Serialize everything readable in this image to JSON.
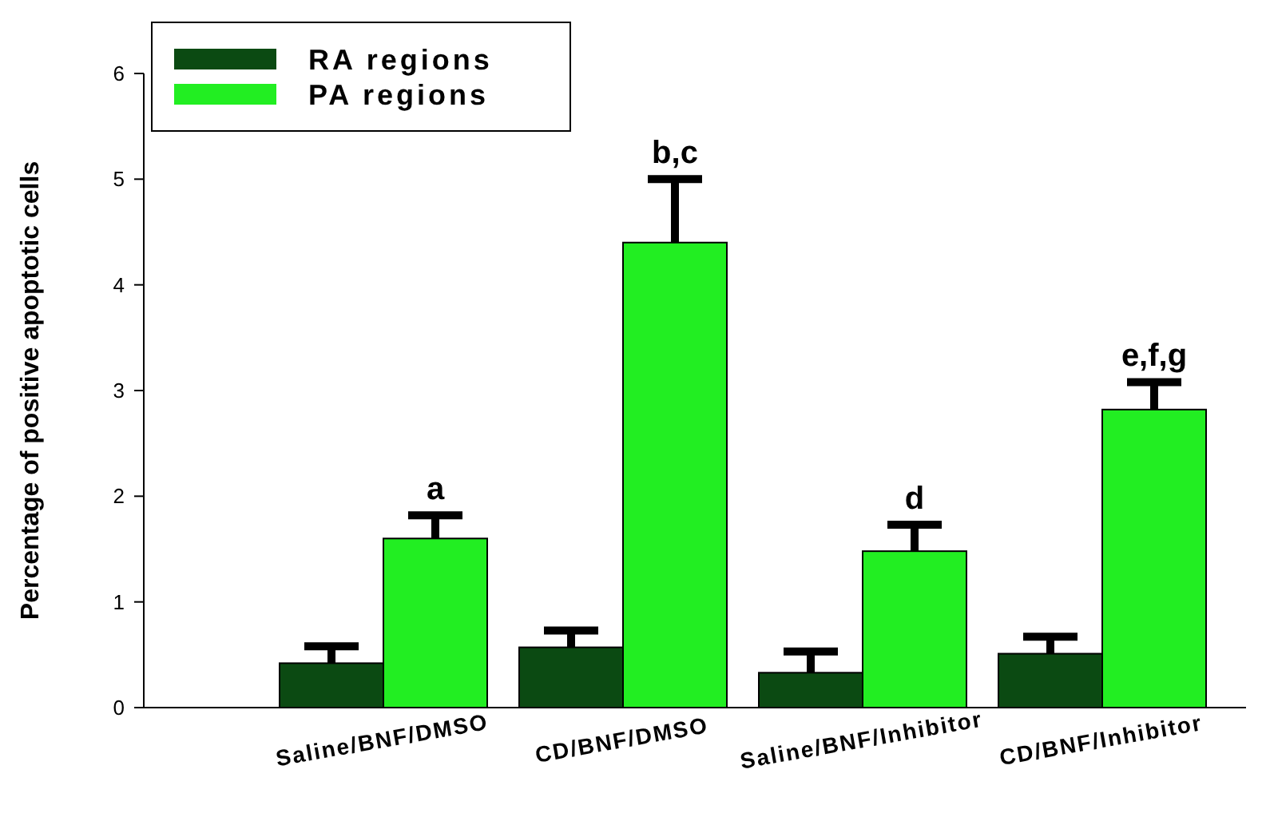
{
  "chart_data": {
    "type": "bar",
    "ylabel": "Percentage of positive apoptotic cells",
    "categories": [
      "Saline/BNF/DMSO",
      "CD/BNF/DMSO",
      "Saline/BNF/Inhibitor",
      "CD/BNF/Inhibitor"
    ],
    "series": [
      {
        "name": "RA regions",
        "color": "#0b4a12",
        "values": [
          0.42,
          0.57,
          0.33,
          0.51
        ],
        "errors": [
          [
            0.42,
            0.58
          ],
          [
            0.57,
            0.73
          ],
          [
            0.33,
            0.53
          ],
          [
            0.51,
            0.67
          ]
        ]
      },
      {
        "name": "PA regions",
        "color": "#22ee22",
        "values": [
          1.6,
          4.4,
          1.48,
          2.82
        ],
        "errors": [
          [
            1.6,
            1.82
          ],
          [
            4.4,
            5.0
          ],
          [
            1.48,
            1.73
          ],
          [
            2.82,
            3.08
          ]
        ]
      }
    ],
    "ylim": [
      0,
      6
    ],
    "yticks": [
      0,
      1,
      2,
      3,
      4,
      5,
      6
    ],
    "grid": false,
    "legend": "top left",
    "annotations": [
      "a",
      "b,c",
      "d",
      "e,f,g"
    ]
  }
}
